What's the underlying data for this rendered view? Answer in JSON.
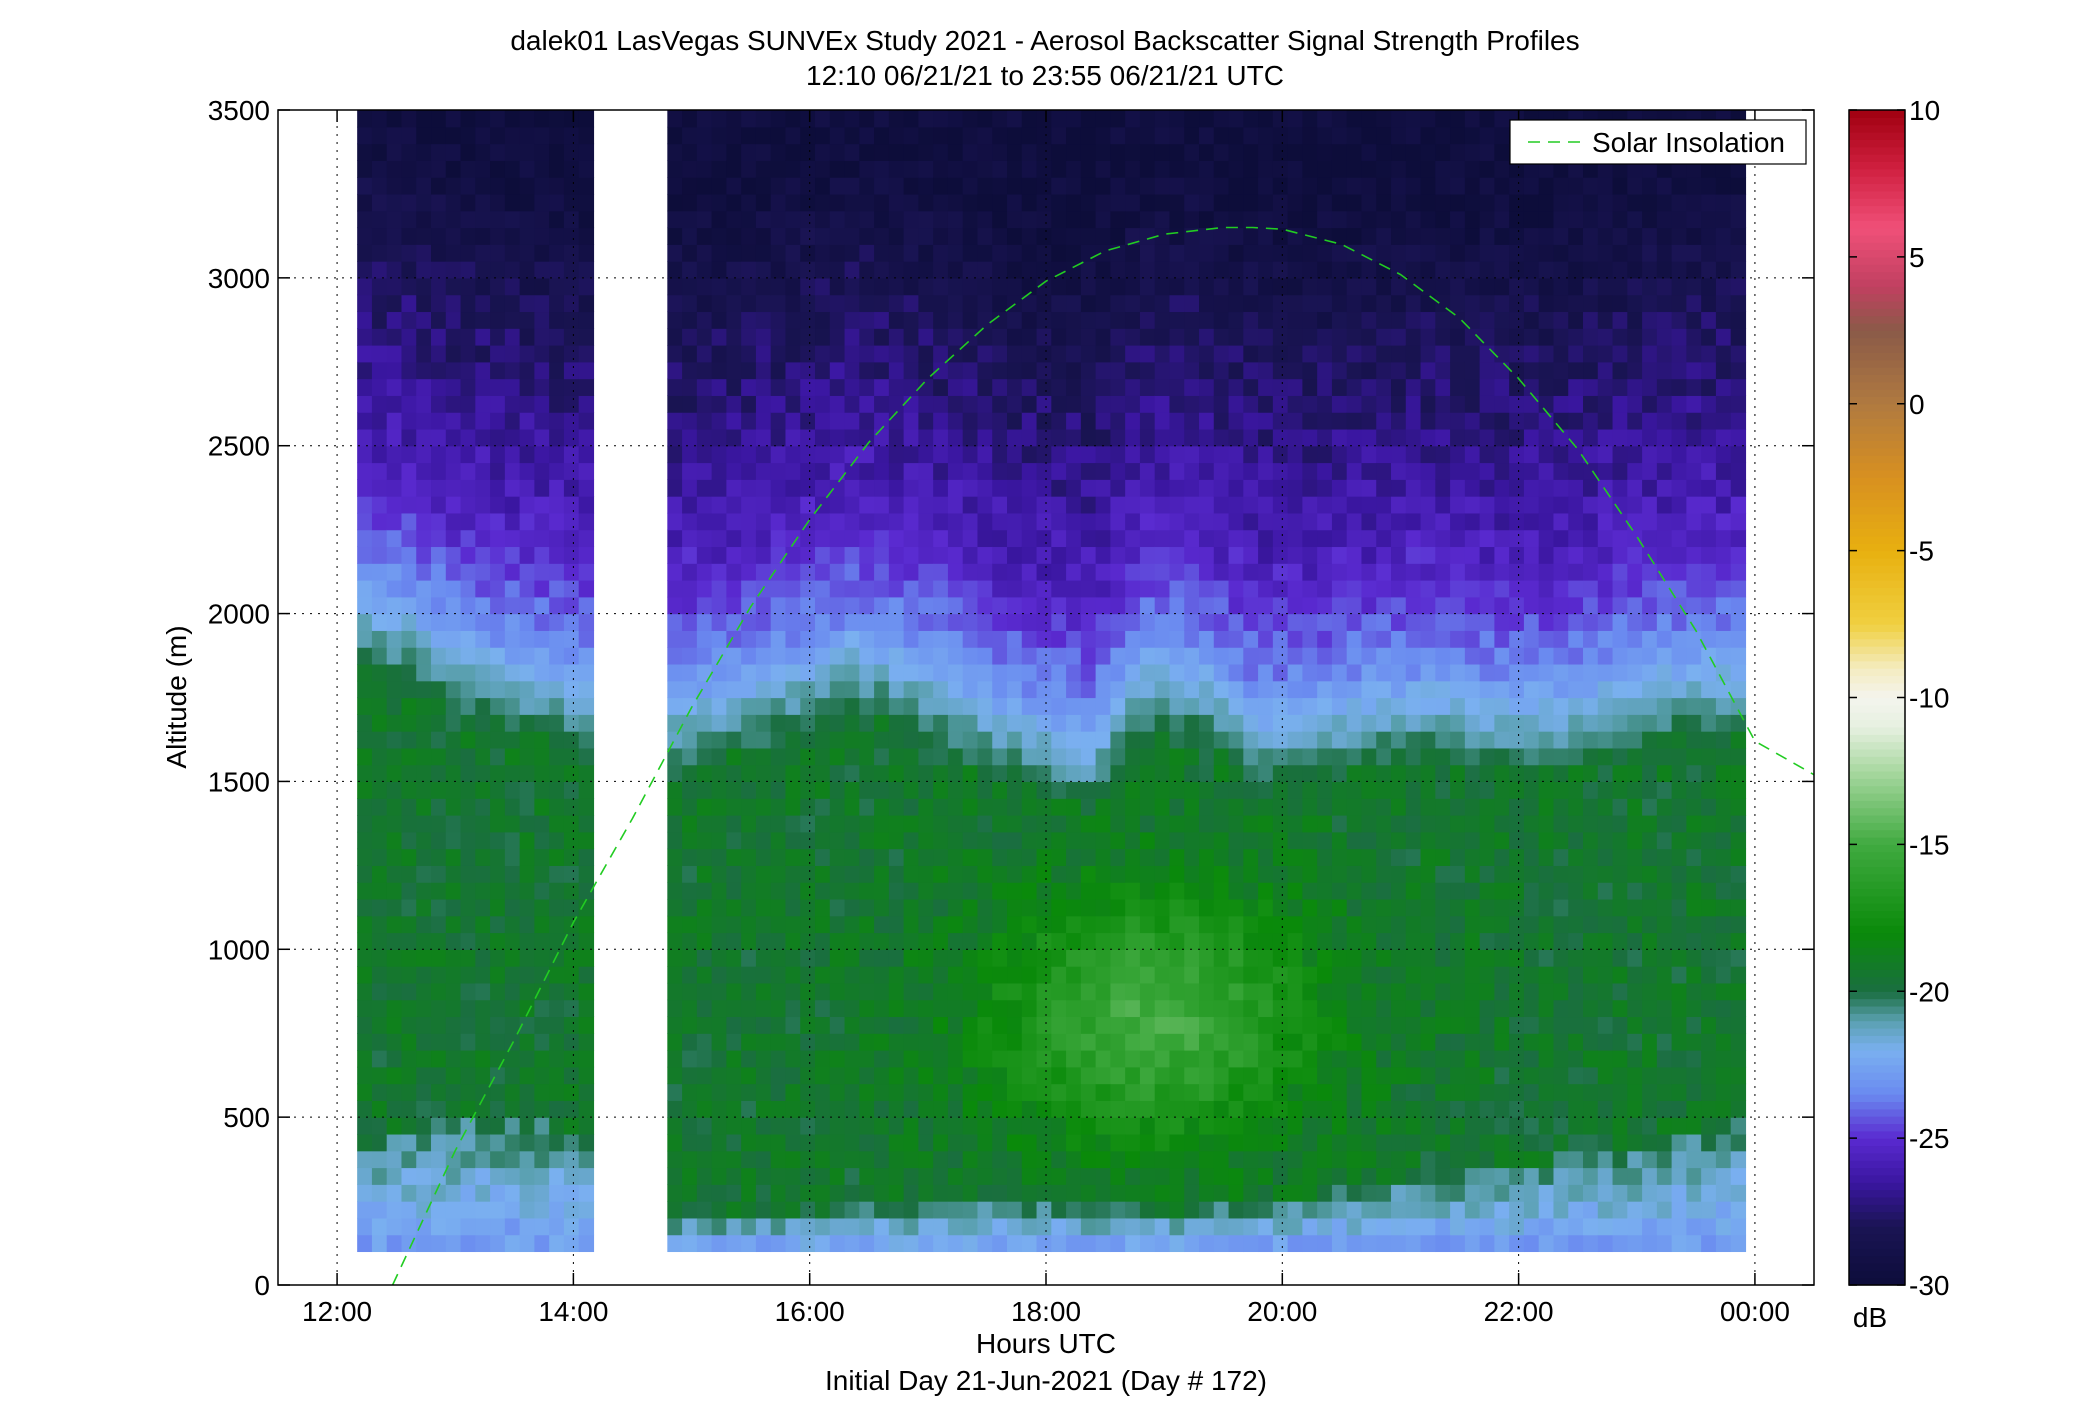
{
  "chart_data": {
    "type": "heatmap",
    "title_line1": "dalek01 LasVegas SUNVEx Study 2021 - Aerosol Backscatter Signal Strength Profiles",
    "title_line2": "12:10 06/21/21 to 23:55 06/21/21  UTC",
    "xlabel": "Hours UTC",
    "xlabel2": "Initial Day 21-Jun-2021 (Day # 172)",
    "ylabel": "Altitude (m)",
    "x_tick_labels": [
      "12:00",
      "14:00",
      "16:00",
      "18:00",
      "20:00",
      "22:00",
      "00:00"
    ],
    "x_tick_values": [
      12,
      14,
      16,
      18,
      20,
      22,
      24
    ],
    "xlim": [
      11.5,
      24.5
    ],
    "y_tick_labels": [
      "0",
      "500",
      "1000",
      "1500",
      "2000",
      "2500",
      "3000",
      "3500"
    ],
    "y_tick_values": [
      0,
      500,
      1000,
      1500,
      2000,
      2500,
      3000,
      3500
    ],
    "ylim": [
      0,
      3500
    ],
    "grid": true,
    "legend": {
      "placement": "top-right",
      "entries": [
        {
          "name": "Solar Insolation",
          "color": "#22cc22",
          "style": "dashed"
        }
      ]
    },
    "colorbar": {
      "label": "dB",
      "range": [
        -30,
        10
      ],
      "tick_labels": [
        "10",
        "5",
        "0",
        "-5",
        "-10",
        "-15",
        "-20",
        "-25",
        "-30"
      ],
      "tick_values": [
        10,
        5,
        0,
        -5,
        -10,
        -15,
        -20,
        -25,
        -30
      ],
      "stops": [
        {
          "v": -30,
          "c": "#0d0d3a"
        },
        {
          "v": -28,
          "c": "#1a1454"
        },
        {
          "v": -26.5,
          "c": "#3a16a0"
        },
        {
          "v": -25,
          "c": "#5a2ad0"
        },
        {
          "v": -23.5,
          "c": "#6a8af0"
        },
        {
          "v": -22,
          "c": "#7ab0f0"
        },
        {
          "v": -21,
          "c": "#5aa0b0"
        },
        {
          "v": -20,
          "c": "#1a6e40"
        },
        {
          "v": -18,
          "c": "#0a8a0a"
        },
        {
          "v": -15,
          "c": "#40aa40"
        },
        {
          "v": -12.5,
          "c": "#a8d8a0"
        },
        {
          "v": -11,
          "c": "#e6f0e0"
        },
        {
          "v": -10,
          "c": "#f4f4ee"
        },
        {
          "v": -9,
          "c": "#f4ecc0"
        },
        {
          "v": -7.5,
          "c": "#f0d040"
        },
        {
          "v": -5,
          "c": "#e8b010"
        },
        {
          "v": -2.5,
          "c": "#d89020"
        },
        {
          "v": 0,
          "c": "#b07a40"
        },
        {
          "v": 2.5,
          "c": "#8a5a48"
        },
        {
          "v": 4,
          "c": "#c04060"
        },
        {
          "v": 6,
          "c": "#f05078"
        },
        {
          "v": 8,
          "c": "#d02040"
        },
        {
          "v": 10,
          "c": "#a00010"
        }
      ]
    },
    "heatmap": {
      "profile_resolution_hours": 0.125,
      "altitude_bin_m": 50,
      "min_altitude_m": 100,
      "max_altitude_m": 3500,
      "data_gaps_utc": [
        [
          11.5,
          12.17
        ],
        [
          14.17,
          14.75
        ],
        [
          23.93,
          24.5
        ]
      ],
      "boundary_layer_top_m": [
        {
          "x": 12.17,
          "y": 2100
        },
        {
          "x": 12.6,
          "y": 2050
        },
        {
          "x": 13.0,
          "y": 1950
        },
        {
          "x": 13.5,
          "y": 1900
        },
        {
          "x": 14.1,
          "y": 1850
        },
        {
          "x": 14.8,
          "y": 1780
        },
        {
          "x": 15.3,
          "y": 1820
        },
        {
          "x": 15.8,
          "y": 1880
        },
        {
          "x": 16.4,
          "y": 1960
        },
        {
          "x": 16.9,
          "y": 1900
        },
        {
          "x": 17.5,
          "y": 1780
        },
        {
          "x": 18.0,
          "y": 1720
        },
        {
          "x": 18.4,
          "y": 1680
        },
        {
          "x": 18.8,
          "y": 1900
        },
        {
          "x": 19.3,
          "y": 1880
        },
        {
          "x": 19.8,
          "y": 1740
        },
        {
          "x": 20.3,
          "y": 1760
        },
        {
          "x": 20.8,
          "y": 1800
        },
        {
          "x": 21.3,
          "y": 1820
        },
        {
          "x": 21.8,
          "y": 1790
        },
        {
          "x": 22.3,
          "y": 1780
        },
        {
          "x": 22.8,
          "y": 1840
        },
        {
          "x": 23.3,
          "y": 1880
        },
        {
          "x": 23.9,
          "y": 1900
        }
      ],
      "surface_layer_top_m": [
        {
          "x": 12.17,
          "y": 420
        },
        {
          "x": 13.0,
          "y": 520
        },
        {
          "x": 14.1,
          "y": 460
        },
        {
          "x": 14.8,
          "y": 200
        },
        {
          "x": 16.0,
          "y": 220
        },
        {
          "x": 17.0,
          "y": 240
        },
        {
          "x": 18.0,
          "y": 250
        },
        {
          "x": 19.0,
          "y": 220
        },
        {
          "x": 20.0,
          "y": 260
        },
        {
          "x": 21.0,
          "y": 320
        },
        {
          "x": 22.0,
          "y": 360
        },
        {
          "x": 23.0,
          "y": 420
        },
        {
          "x": 23.9,
          "y": 520
        }
      ],
      "enhanced_layer": {
        "center_x": 18.9,
        "center_y": 800,
        "spread_x": 1.3,
        "spread_y": 350,
        "peak_db": -15
      }
    },
    "solar_insolation": {
      "x": [
        12.47,
        13.0,
        13.5,
        14.0,
        14.5,
        15.0,
        15.5,
        16.0,
        16.5,
        17.0,
        17.5,
        18.0,
        18.5,
        19.0,
        19.5,
        19.75,
        20.0,
        20.5,
        21.0,
        21.5,
        22.0,
        22.5,
        23.0,
        23.5,
        24.0,
        24.5
      ],
      "y": [
        0,
        400,
        730,
        1080,
        1390,
        1720,
        2020,
        2280,
        2510,
        2700,
        2860,
        2990,
        3080,
        3130,
        3150,
        3150,
        3145,
        3100,
        3010,
        2880,
        2700,
        2490,
        2230,
        1950,
        1620,
        1520
      ]
    }
  }
}
